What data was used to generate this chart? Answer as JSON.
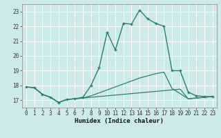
{
  "xlabel": "Humidex (Indice chaleur)",
  "bg_color": "#cceaea",
  "grid_color": "#ffffff",
  "line_color": "#2e7d6e",
  "xlim": [
    -0.5,
    23.5
  ],
  "ylim": [
    16.5,
    23.5
  ],
  "yticks": [
    17,
    18,
    19,
    20,
    21,
    22,
    23
  ],
  "xticks": [
    0,
    1,
    2,
    3,
    4,
    5,
    6,
    7,
    8,
    9,
    10,
    11,
    12,
    13,
    14,
    15,
    16,
    17,
    18,
    19,
    20,
    21,
    22,
    23
  ],
  "series": [
    {
      "x": [
        0,
        1,
        2,
        3,
        4,
        5,
        6,
        7,
        8,
        9,
        10,
        11,
        12,
        13,
        14,
        15,
        16,
        17,
        18,
        19,
        20,
        21,
        22,
        23
      ],
      "y": [
        17.9,
        17.85,
        17.4,
        17.2,
        16.85,
        17.05,
        17.1,
        17.15,
        17.2,
        17.25,
        17.3,
        17.35,
        17.4,
        17.45,
        17.5,
        17.55,
        17.6,
        17.65,
        17.7,
        17.75,
        17.1,
        17.15,
        17.2,
        17.25
      ],
      "marker": null,
      "linewidth": 0.9,
      "markersize": 0
    },
    {
      "x": [
        0,
        1,
        2,
        3,
        4,
        5,
        6,
        7,
        8,
        9,
        10,
        11,
        12,
        13,
        14,
        15,
        16,
        17,
        18,
        19,
        20,
        21,
        22,
        23
      ],
      "y": [
        17.9,
        17.85,
        17.4,
        17.2,
        16.85,
        17.05,
        17.1,
        17.15,
        17.3,
        17.5,
        17.7,
        17.9,
        18.1,
        18.3,
        18.5,
        18.65,
        18.8,
        18.9,
        17.8,
        17.45,
        17.1,
        17.15,
        17.2,
        17.25
      ],
      "marker": null,
      "linewidth": 0.9,
      "markersize": 0
    },
    {
      "x": [
        0,
        1,
        2,
        3,
        4,
        5,
        6,
        7,
        8,
        9,
        10,
        11,
        12,
        13,
        14,
        15,
        16,
        17,
        18,
        19,
        20,
        21,
        22,
        23
      ],
      "y": [
        17.9,
        17.85,
        17.4,
        17.2,
        16.85,
        17.05,
        17.1,
        17.2,
        18.0,
        19.2,
        21.6,
        20.4,
        22.2,
        22.15,
        23.1,
        22.5,
        22.2,
        22.0,
        19.0,
        19.0,
        17.55,
        17.3,
        17.25,
        17.25
      ],
      "marker": "+",
      "linewidth": 1.0,
      "markersize": 3.5
    }
  ]
}
